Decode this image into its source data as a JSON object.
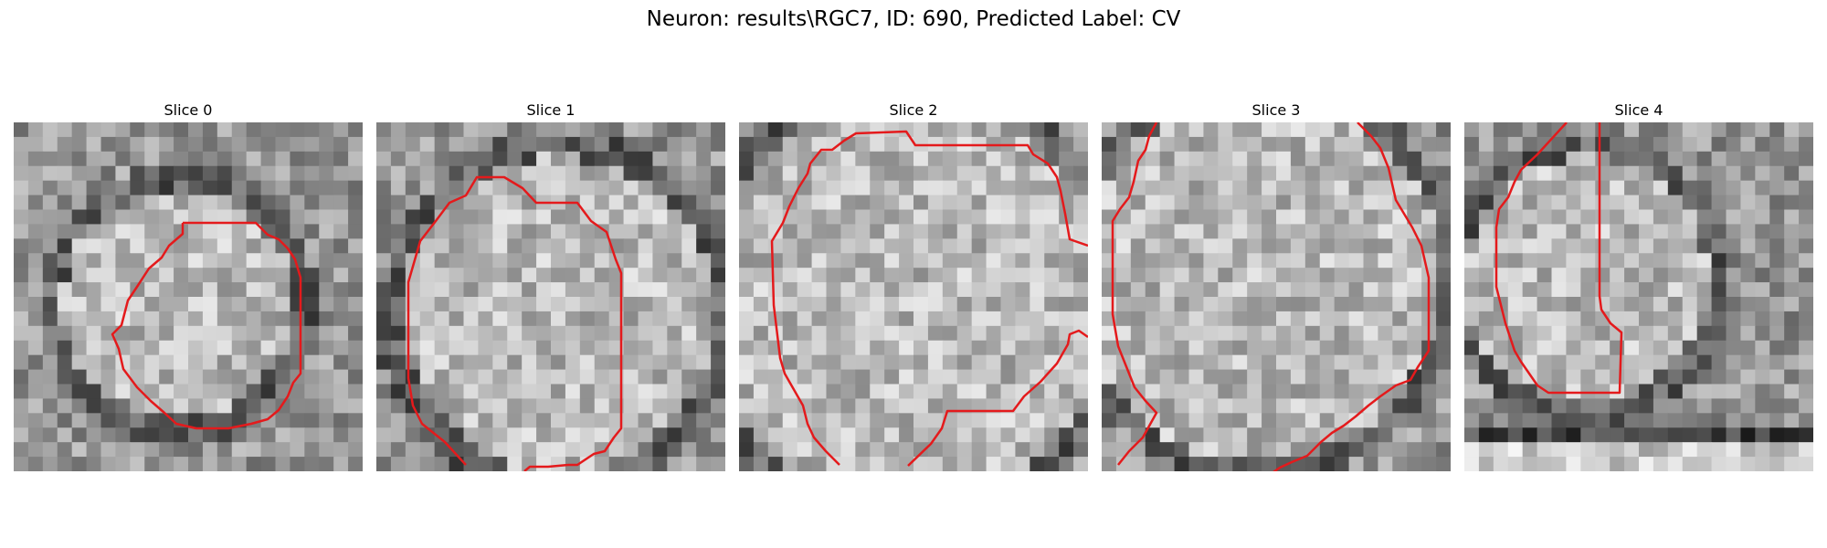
{
  "figure": {
    "title": "Neuron: results\\RGC7, ID: 690, Predicted Label: CV",
    "contour_color": "#e41a1c"
  },
  "panels": [
    {
      "title": "Slice 0"
    },
    {
      "title": "Slice 1"
    },
    {
      "title": "Slice 2"
    },
    {
      "title": "Slice 3"
    },
    {
      "title": "Slice 4"
    }
  ]
}
